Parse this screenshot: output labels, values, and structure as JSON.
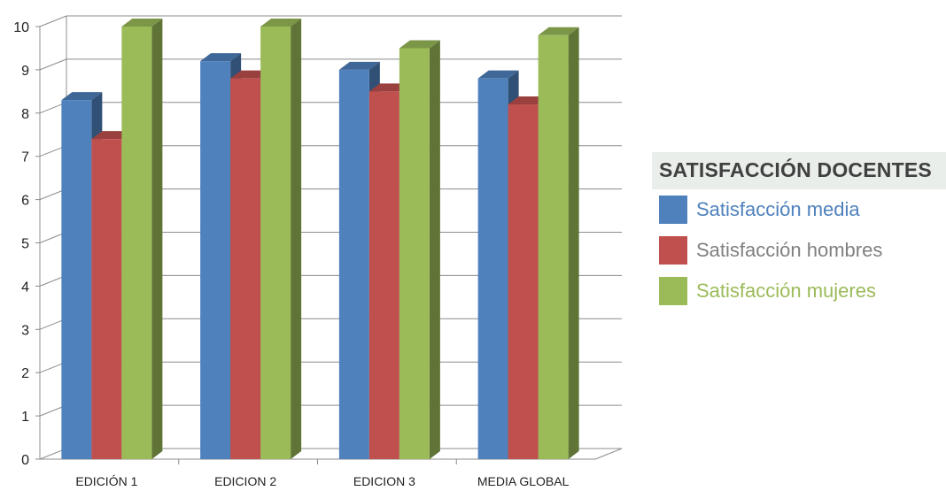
{
  "chart_data": {
    "type": "bar",
    "title": "",
    "xlabel": "",
    "ylabel": "",
    "categories": [
      "EDICIÓN 1",
      "EDICION 2",
      "EDICION 3",
      "MEDIA GLOBAL"
    ],
    "series": [
      {
        "name": "Satisfacción media",
        "values": [
          8.3,
          9.2,
          9.0,
          8.8
        ],
        "color": "#4f81bd",
        "text_color": "#4f81bd"
      },
      {
        "name": "Satisfacción hombres",
        "values": [
          7.4,
          8.8,
          8.5,
          8.2
        ],
        "color": "#c0504d",
        "text_color": "#7f7f7f"
      },
      {
        "name": "Satisfacción mujeres",
        "values": [
          10.0,
          10.0,
          9.5,
          9.8
        ],
        "color": "#9bbb59",
        "text_color": "#9bbb59"
      }
    ],
    "ylim": [
      0,
      10
    ],
    "yticks": [
      0,
      1,
      2,
      3,
      4,
      5,
      6,
      7,
      8,
      9,
      10
    ],
    "grid": true,
    "legend": {
      "title": "SATISFACCIÓN DOCENTES",
      "position": "right"
    }
  }
}
